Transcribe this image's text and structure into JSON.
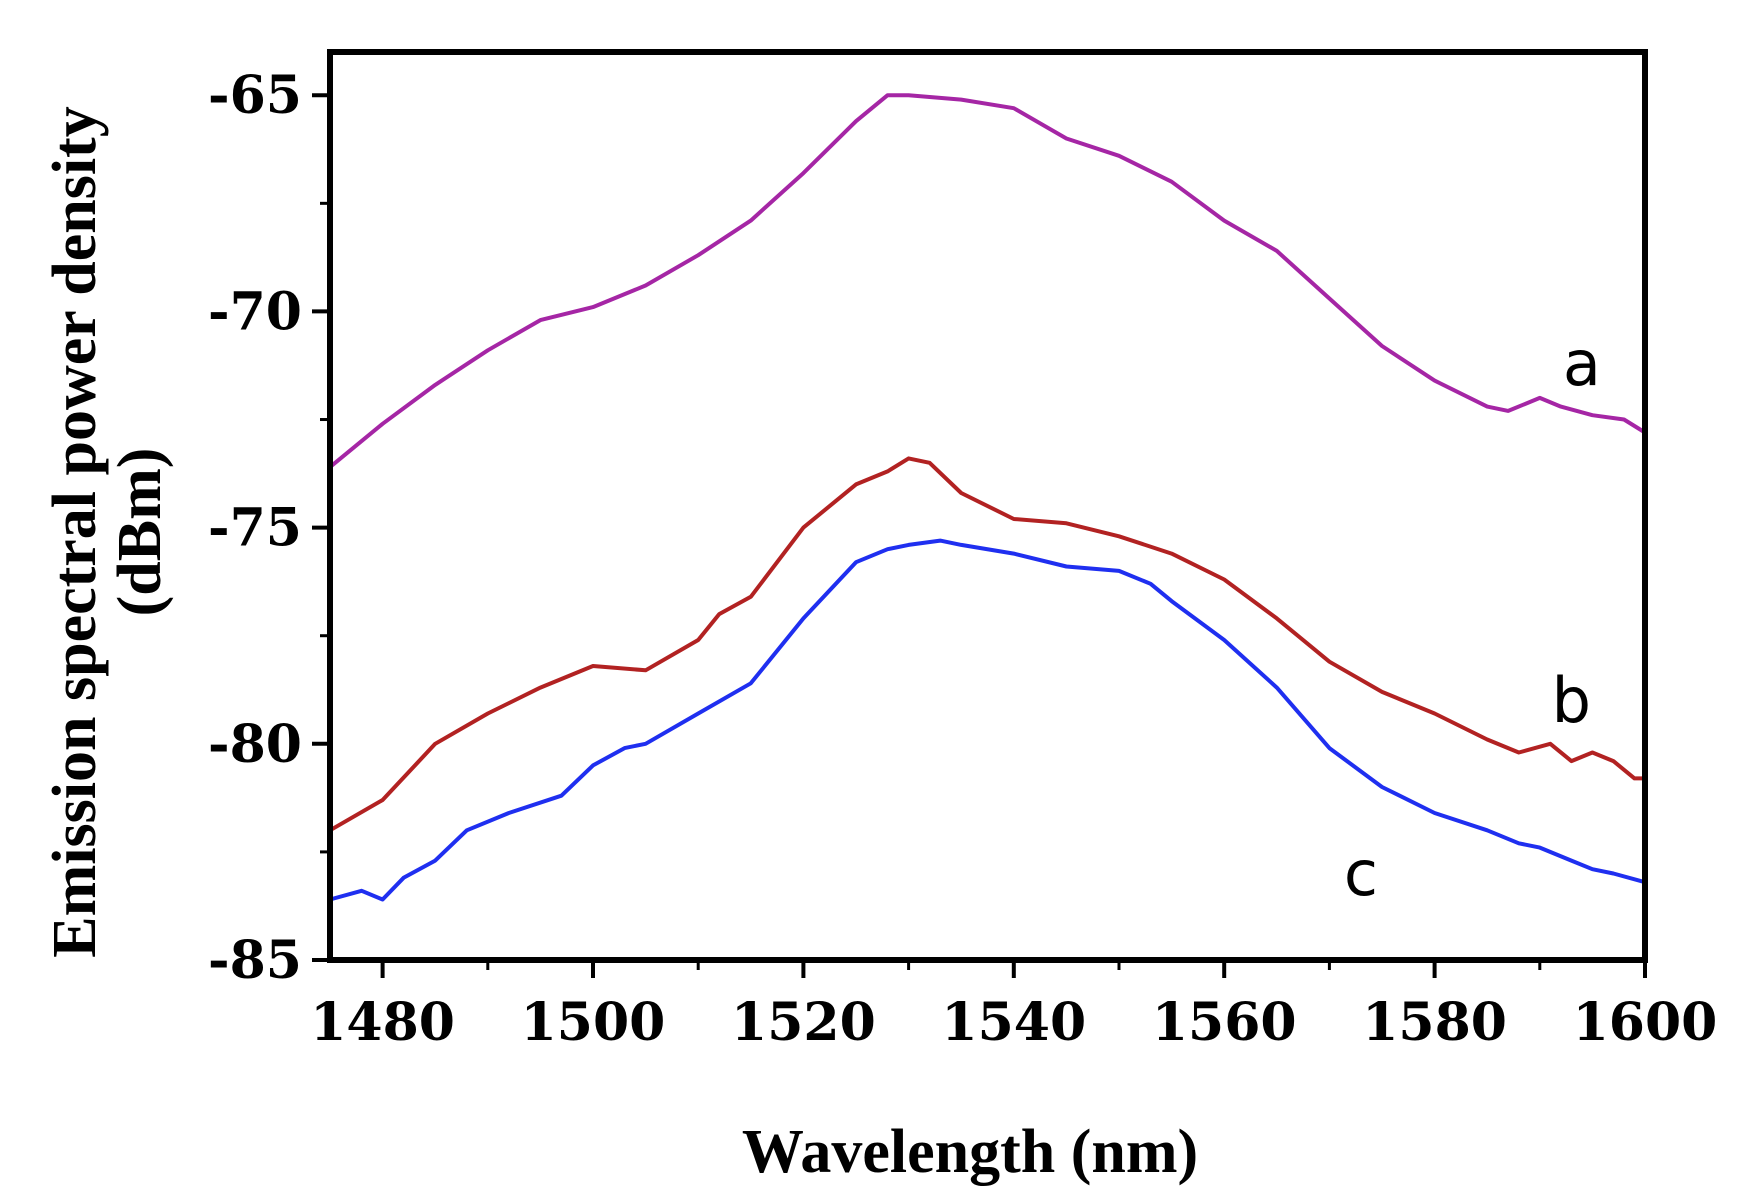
{
  "chart_data": {
    "type": "line",
    "title": "",
    "xlabel": "Wavelength (nm)",
    "ylabel_line1": "Emission spectral power density",
    "ylabel_line2": "(dBm)",
    "xlim": [
      1475,
      1600
    ],
    "ylim": [
      -85,
      -64
    ],
    "x_ticks": [
      1480,
      1500,
      1520,
      1540,
      1560,
      1580,
      1600
    ],
    "x_tick_labels": [
      "1480",
      "1500",
      "1520",
      "1540",
      "1560",
      "1580",
      "1600"
    ],
    "y_ticks": [
      -65,
      -70,
      -75,
      -80,
      -85
    ],
    "y_tick_labels": [
      "-65",
      "-70",
      "-75",
      "-80",
      "-85"
    ],
    "grid": false,
    "series": [
      {
        "name": "a",
        "color": "#a526a5",
        "x": [
          1475,
          1480,
          1485,
          1490,
          1495,
          1500,
          1505,
          1510,
          1515,
          1520,
          1525,
          1528,
          1530,
          1535,
          1540,
          1545,
          1550,
          1555,
          1560,
          1565,
          1570,
          1575,
          1580,
          1585,
          1587,
          1590,
          1592,
          1595,
          1598,
          1600
        ],
        "y": [
          -73.6,
          -72.6,
          -71.7,
          -70.9,
          -70.2,
          -69.9,
          -69.4,
          -68.7,
          -67.9,
          -66.8,
          -65.6,
          -65.0,
          -65.0,
          -65.1,
          -65.3,
          -66.0,
          -66.4,
          -67.0,
          -67.9,
          -68.6,
          -69.7,
          -70.8,
          -71.6,
          -72.2,
          -72.3,
          -72.0,
          -72.2,
          -72.4,
          -72.5,
          -72.8
        ]
      },
      {
        "name": "b",
        "color": "#b22222",
        "x": [
          1475,
          1480,
          1485,
          1490,
          1495,
          1500,
          1505,
          1510,
          1512,
          1515,
          1520,
          1525,
          1528,
          1530,
          1532,
          1535,
          1540,
          1545,
          1550,
          1555,
          1560,
          1565,
          1570,
          1575,
          1580,
          1585,
          1588,
          1591,
          1593,
          1595,
          1597,
          1599,
          1600
        ],
        "y": [
          -82.0,
          -81.3,
          -80.0,
          -79.3,
          -78.7,
          -78.2,
          -78.3,
          -77.6,
          -77.0,
          -76.6,
          -75.0,
          -74.0,
          -73.7,
          -73.4,
          -73.5,
          -74.2,
          -74.8,
          -74.9,
          -75.2,
          -75.6,
          -76.2,
          -77.1,
          -78.1,
          -78.8,
          -79.3,
          -79.9,
          -80.2,
          -80.0,
          -80.4,
          -80.2,
          -80.4,
          -80.8,
          -80.8
        ]
      },
      {
        "name": "c",
        "color": "#1f2ff0",
        "x": [
          1475,
          1478,
          1480,
          1482,
          1485,
          1488,
          1492,
          1497,
          1500,
          1503,
          1505,
          1510,
          1515,
          1520,
          1525,
          1528,
          1530,
          1533,
          1535,
          1540,
          1545,
          1550,
          1553,
          1555,
          1560,
          1565,
          1570,
          1575,
          1580,
          1585,
          1588,
          1590,
          1593,
          1595,
          1597,
          1600
        ],
        "y": [
          -83.6,
          -83.4,
          -83.6,
          -83.1,
          -82.7,
          -82.0,
          -81.6,
          -81.2,
          -80.5,
          -80.1,
          -80.0,
          -79.3,
          -78.6,
          -77.1,
          -75.8,
          -75.5,
          -75.4,
          -75.3,
          -75.4,
          -75.6,
          -75.9,
          -76.0,
          -76.3,
          -76.7,
          -77.6,
          -78.7,
          -80.1,
          -81.0,
          -81.6,
          -82.0,
          -82.3,
          -82.4,
          -82.7,
          -82.9,
          -83.0,
          -83.2
        ]
      }
    ],
    "annotations": [
      {
        "text": "a",
        "x": 1594,
        "y": -71.7
      },
      {
        "text": "b",
        "x": 1593,
        "y": -79.5
      },
      {
        "text": "c",
        "x": 1573,
        "y": -83.5
      }
    ]
  }
}
